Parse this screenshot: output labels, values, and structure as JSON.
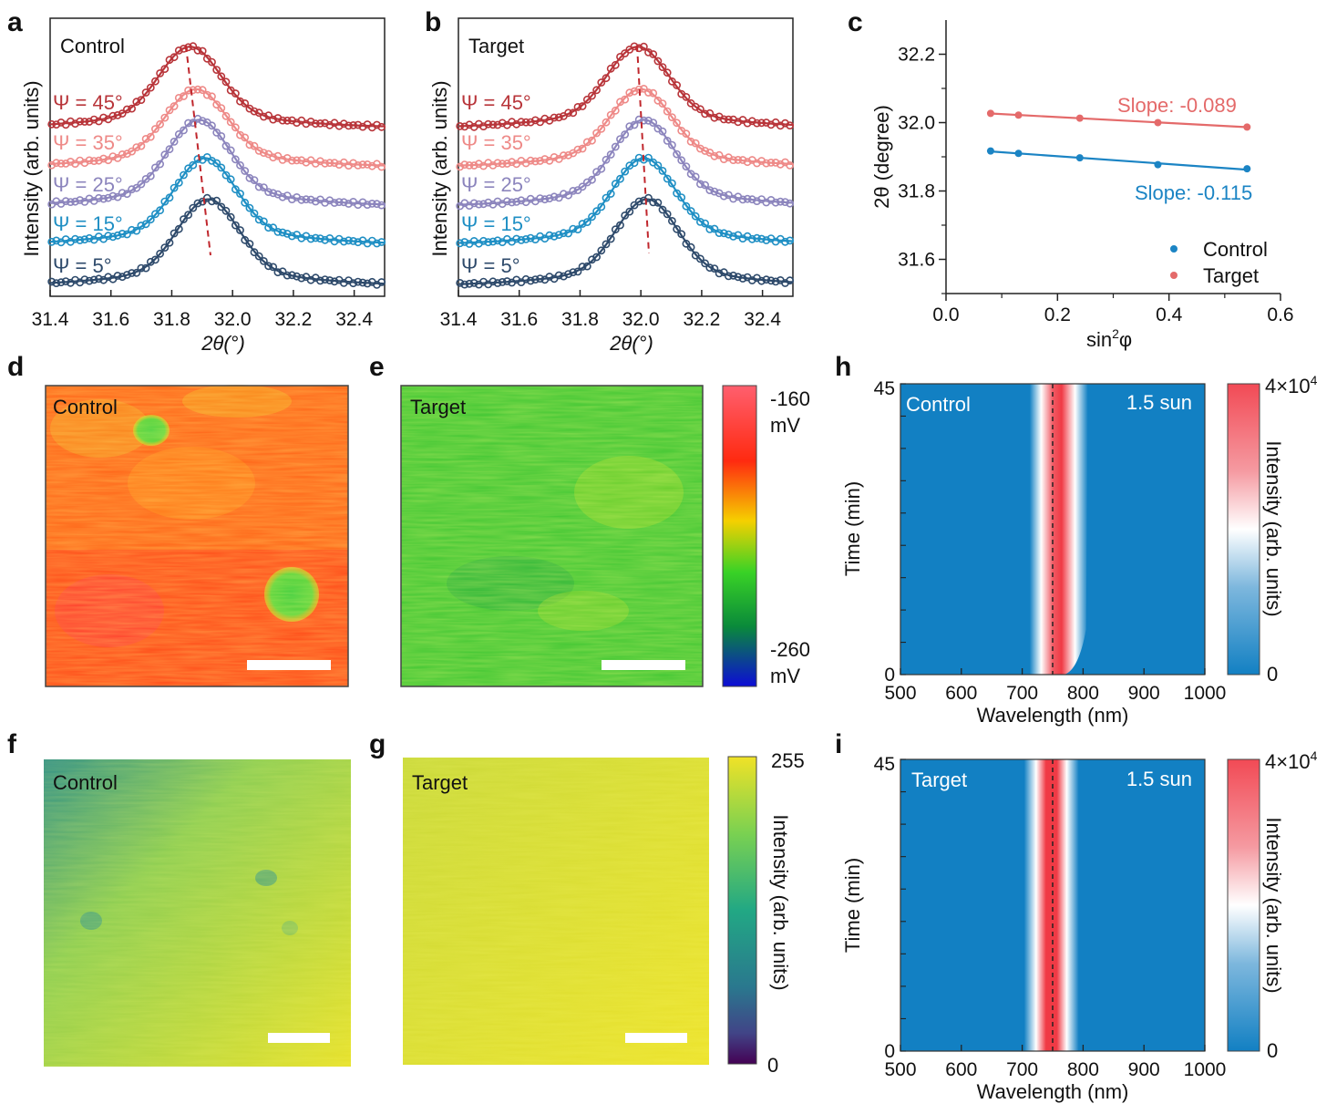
{
  "panels": {
    "a": {
      "letter": "a",
      "label": "Control",
      "xlabel": "2θ(°)",
      "ylabel": "Intensity (arb. units)",
      "xticks": [
        "31.4",
        "31.6",
        "31.8",
        "32.0",
        "32.2",
        "32.4"
      ],
      "psi_labels": [
        "Ψ = 45°",
        "Ψ = 35°",
        "Ψ = 25°",
        "Ψ = 15°",
        "Ψ = 5°"
      ]
    },
    "b": {
      "letter": "b",
      "label": "Target",
      "xlabel": "2θ(°)",
      "ylabel": "Intensity (arb. units)",
      "xticks": [
        "31.4",
        "31.6",
        "31.8",
        "32.0",
        "32.2",
        "32.4"
      ],
      "psi_labels": [
        "Ψ = 45°",
        "Ψ = 35°",
        "Ψ = 25°",
        "Ψ = 15°",
        "Ψ = 5°"
      ]
    },
    "c": {
      "letter": "c",
      "xlabel_base": "sin",
      "xlabel_sup": "2",
      "xlabel_end": "φ",
      "ylabel": "2θ (degree)",
      "xticks": [
        "0.0",
        "0.2",
        "0.4",
        "0.6"
      ],
      "yticks": [
        "31.6",
        "31.8",
        "32.0",
        "32.2"
      ],
      "slope_target": "Slope: -0.089",
      "slope_control": "Slope: -0.115",
      "legend": [
        "Control",
        "Target"
      ]
    },
    "d": {
      "letter": "d",
      "label": "Control"
    },
    "e": {
      "letter": "e",
      "label": "Target"
    },
    "kpfm_colorbar": {
      "top_value": "-160",
      "top_unit": "mV",
      "bottom_value": "-260",
      "bottom_unit": "mV"
    },
    "f": {
      "letter": "f",
      "label": "Control"
    },
    "g": {
      "letter": "g",
      "label": "Target"
    },
    "pl_colorbar": {
      "top": "255",
      "bottom": "0",
      "label": "Intensity (arb. units)"
    },
    "h": {
      "letter": "h",
      "label": "Control",
      "condition": "1.5 sun",
      "xlabel": "Wavelength (nm)",
      "ylabel": "Time (min)",
      "xticks": [
        "500",
        "600",
        "700",
        "800",
        "900",
        "1000"
      ],
      "yticks": [
        "0",
        "45"
      ],
      "cbar_top": "4×10",
      "cbar_top_exp": "4",
      "cbar_bottom": "0",
      "cbar_label": "Intensity (arb. units)"
    },
    "i": {
      "letter": "i",
      "label": "Target",
      "condition": "1.5 sun",
      "xlabel": "Wavelength (nm)",
      "ylabel": "Time (min)",
      "xticks": [
        "500",
        "600",
        "700",
        "800",
        "900",
        "1000"
      ],
      "yticks": [
        "0",
        "45"
      ],
      "cbar_top": "4×10",
      "cbar_top_exp": "4",
      "cbar_bottom": "0",
      "cbar_label": "Intensity (arb. units)"
    }
  },
  "colors": {
    "psi45": "#b8353a",
    "psi35": "#ee8a88",
    "psi25": "#8c85bd",
    "psi15": "#1f8fc4",
    "psi5": "#2e4a6b",
    "control": "#1b84c4",
    "target": "#e46a6a",
    "guide": "#c0272d"
  },
  "chart_data": [
    {
      "panel": "a",
      "type": "line",
      "x_range": [
        31.4,
        32.5
      ],
      "series": [
        {
          "name": "Ψ = 45°",
          "peak": 31.86
        },
        {
          "name": "Ψ = 35°",
          "peak": 31.88
        },
        {
          "name": "Ψ = 25°",
          "peak": 31.89
        },
        {
          "name": "Ψ = 15°",
          "peak": 31.91
        },
        {
          "name": "Ψ = 5°",
          "peak": 31.92
        }
      ]
    },
    {
      "panel": "b",
      "type": "line",
      "x_range": [
        31.4,
        32.5
      ],
      "series": [
        {
          "name": "Ψ = 45°",
          "peak": 31.99
        },
        {
          "name": "Ψ = 35°",
          "peak": 32.0
        },
        {
          "name": "Ψ = 25°",
          "peak": 32.01
        },
        {
          "name": "Ψ = 15°",
          "peak": 32.01
        },
        {
          "name": "Ψ = 5°",
          "peak": 32.02
        }
      ]
    },
    {
      "panel": "c",
      "type": "scatter",
      "x_range": [
        0.0,
        0.6
      ],
      "y_range": [
        31.5,
        32.3
      ],
      "series": [
        {
          "name": "Control",
          "x": [
            0.08,
            0.13,
            0.24,
            0.38,
            0.54
          ],
          "y": [
            31.917,
            31.91,
            31.897,
            31.877,
            31.865
          ]
        },
        {
          "name": "Target",
          "x": [
            0.08,
            0.13,
            0.24,
            0.38,
            0.54
          ],
          "y": [
            32.027,
            32.022,
            32.013,
            32.0,
            31.987
          ]
        }
      ]
    },
    {
      "panel": "h",
      "type": "heatmap",
      "x_range": [
        500,
        1000
      ],
      "y_range": [
        0,
        45
      ],
      "z_range": [
        0,
        40000
      ],
      "peak_wavelength_nm": 760,
      "reference_line_nm": 750
    },
    {
      "panel": "i",
      "type": "heatmap",
      "x_range": [
        500,
        1000
      ],
      "y_range": [
        0,
        45
      ],
      "z_range": [
        0,
        40000
      ],
      "peak_wavelength_nm": 748,
      "reference_line_nm": 750
    }
  ]
}
